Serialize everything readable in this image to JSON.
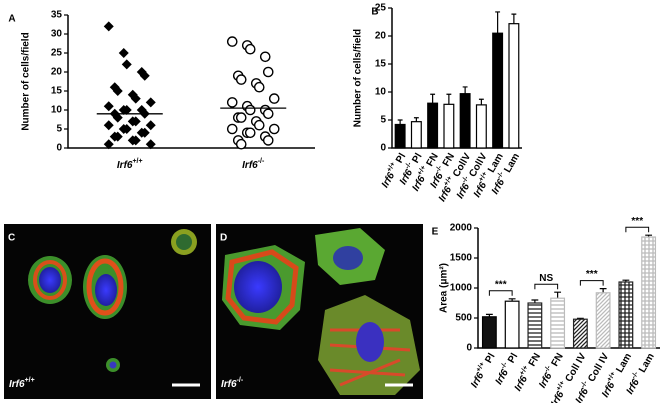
{
  "chart_data": [
    {
      "type": "strip",
      "panel": "A",
      "ylabel": "Number of cells/field",
      "categories": [
        "Irf6+/+",
        "Irf6-/-"
      ],
      "series": [
        {
          "marker": "diamond",
          "color": "#000000",
          "values": [
            32,
            25,
            22,
            20,
            19,
            16,
            15,
            14,
            13,
            12,
            11,
            10,
            10,
            10,
            9,
            9,
            8,
            7,
            7,
            6,
            6,
            5,
            5,
            4,
            4,
            3,
            3,
            2,
            2,
            1,
            1
          ]
        },
        {
          "marker": "circle",
          "color": "#000000",
          "values": [
            28,
            27,
            26,
            24,
            20,
            19,
            18,
            17,
            16,
            13,
            12,
            11,
            10,
            10,
            9,
            8,
            8,
            7,
            6,
            5,
            5,
            4,
            4,
            3,
            2,
            2,
            1
          ]
        }
      ],
      "means": [
        9,
        10.5
      ],
      "ylim": [
        0,
        35
      ],
      "yticks": [
        0,
        5,
        10,
        15,
        20,
        25,
        30,
        35
      ]
    },
    {
      "type": "bar",
      "panel": "B",
      "ylabel": "Number of cells/field",
      "categories": [
        "Irf6+/+ Pl",
        "Irf6-/- Pl",
        "Irf6+/+ FN",
        "Irf6-/- FN",
        "Irf6+/+ CollV",
        "Irf6-/- CollV",
        "Irf6+/+ Lam",
        "Irf6-/- Lam"
      ],
      "values": [
        4.2,
        4.7,
        8,
        7.8,
        9.7,
        7.7,
        20.5,
        22.2
      ],
      "errors": [
        0.8,
        0.7,
        1.6,
        1.8,
        1.2,
        1.0,
        3.8,
        1.7
      ],
      "colors": [
        "#000000",
        "#ffffff",
        "#000000",
        "#ffffff",
        "#000000",
        "#ffffff",
        "#000000",
        "#ffffff"
      ],
      "patterns": [
        "solid",
        "solid",
        "solid",
        "solid",
        "solid",
        "solid",
        "solid",
        "solid"
      ],
      "ylim": [
        0,
        25
      ],
      "yticks": [
        0,
        5,
        10,
        15,
        20,
        25
      ]
    },
    {
      "type": "bar",
      "panel": "E",
      "ylabel": "Area (μm²)",
      "categories": [
        "Irf6+/+ Pl",
        "Irf6-/- Pl",
        "Irf6+/+ FN",
        "Irf6-/- FN",
        "Irf6+/+ Coll IV",
        "Irf6-/- Coll IV",
        "Irf6+/+ Lam",
        "Irf6-/- Lam"
      ],
      "values": [
        520,
        780,
        750,
        830,
        480,
        920,
        1100,
        1850
      ],
      "errors": [
        40,
        40,
        50,
        100,
        15,
        70,
        30,
        30
      ],
      "colors": [
        "#111111",
        "#ffffff",
        "#222222",
        "#bbbbbb",
        "#222222",
        "#bbbbbb",
        "#222222",
        "#bbbbbb"
      ],
      "patterns": [
        "solid",
        "solid",
        "hlines",
        "hlines",
        "diagonal",
        "diagonal",
        "grid",
        "grid"
      ],
      "significance": [
        "***",
        "NS",
        "***",
        "***"
      ],
      "ylim": [
        0,
        2000
      ],
      "yticks": [
        0,
        500,
        1000,
        1500,
        2000
      ]
    }
  ],
  "panels": [
    {
      "letter": "C",
      "label": "Irf6+/+"
    },
    {
      "letter": "D",
      "label": "Irf6-/-"
    }
  ]
}
